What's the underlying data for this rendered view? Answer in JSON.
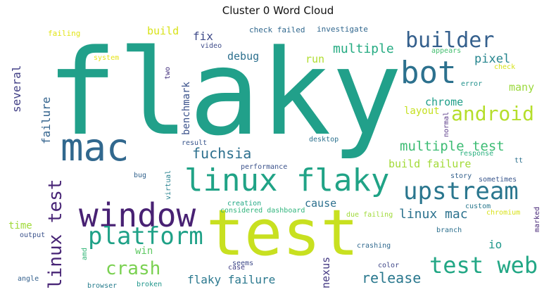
{
  "title": "Cluster 0 Word Cloud",
  "words": [
    {
      "text": "flaky",
      "color": "#21a08a"
    },
    {
      "text": "test",
      "color": "#c8e020"
    },
    {
      "text": "mac",
      "color": "#31688e"
    },
    {
      "text": "window",
      "color": "#482173"
    },
    {
      "text": "linux flaky",
      "color": "#20a386"
    },
    {
      "text": "bot",
      "color": "#2c718e"
    },
    {
      "text": "platform",
      "color": "#1fa187"
    },
    {
      "text": "upstream",
      "color": "#2a768e"
    },
    {
      "text": "test web",
      "color": "#22a785"
    },
    {
      "text": "builder",
      "color": "#35608d"
    },
    {
      "text": "android",
      "color": "#b5de2b"
    },
    {
      "text": "linux test",
      "color": "#482576"
    },
    {
      "text": "crash",
      "color": "#7ad151"
    },
    {
      "text": "multiple test",
      "color": "#3dbc74"
    },
    {
      "text": "fuchsia",
      "color": "#2d708e"
    },
    {
      "text": "release",
      "color": "#2a788e"
    },
    {
      "text": "multiple",
      "color": "#25ab82"
    },
    {
      "text": "linux mac",
      "color": "#2c728e"
    },
    {
      "text": "pixel",
      "color": "#25858e"
    },
    {
      "text": "flaky failure",
      "color": "#2a788e"
    },
    {
      "text": "chrome",
      "color": "#1f9e89"
    },
    {
      "text": "several",
      "color": "#424086"
    },
    {
      "text": "failure",
      "color": "#33638d"
    },
    {
      "text": "cause",
      "color": "#2d708e"
    },
    {
      "text": "many",
      "color": "#9bd93c"
    },
    {
      "text": "benchmark",
      "color": "#3b528b"
    },
    {
      "text": "nexus",
      "color": "#443983"
    },
    {
      "text": "build failure",
      "color": "#a2da37"
    },
    {
      "text": "fix",
      "color": "#3e4a89"
    },
    {
      "text": "build",
      "color": "#d8e219"
    },
    {
      "text": "debug",
      "color": "#2d708e"
    },
    {
      "text": "run",
      "color": "#b0dd2f"
    },
    {
      "text": "layout",
      "color": "#c5e021"
    },
    {
      "text": "win",
      "color": "#5ec962"
    },
    {
      "text": "io",
      "color": "#1f988b"
    },
    {
      "text": "time",
      "color": "#a0da39"
    },
    {
      "text": "check failed",
      "color": "#31688e"
    },
    {
      "text": "investigate",
      "color": "#31678e"
    },
    {
      "text": "failing",
      "color": "#e2e418"
    },
    {
      "text": "system",
      "color": "#e7e419"
    },
    {
      "text": "video",
      "color": "#3e4c8a"
    },
    {
      "text": "appears",
      "color": "#44bf70"
    },
    {
      "text": "check",
      "color": "#d5e21a"
    },
    {
      "text": "error",
      "color": "#21918c"
    },
    {
      "text": "two",
      "color": "#46337f"
    },
    {
      "text": "normal",
      "color": "#5c3c8a"
    },
    {
      "text": "result",
      "color": "#39568c"
    },
    {
      "text": "desktop",
      "color": "#2c718e"
    },
    {
      "text": "response",
      "color": "#2ab07f"
    },
    {
      "text": "tt",
      "color": "#2d708e"
    },
    {
      "text": "performance",
      "color": "#3b528b"
    },
    {
      "text": "story",
      "color": "#34618d"
    },
    {
      "text": "sometimes",
      "color": "#39568c"
    },
    {
      "text": "bug",
      "color": "#33638d"
    },
    {
      "text": "virtual",
      "color": "#26818e"
    },
    {
      "text": "creation",
      "color": "#22a884"
    },
    {
      "text": "considered dashboard",
      "color": "#2fb47c"
    },
    {
      "text": "custom",
      "color": "#2a788e"
    },
    {
      "text": "chromium",
      "color": "#d8e219"
    },
    {
      "text": "due failing",
      "color": "#a0da39"
    },
    {
      "text": "marked",
      "color": "#482878"
    },
    {
      "text": "branch",
      "color": "#2d708e"
    },
    {
      "text": "output",
      "color": "#3b528b"
    },
    {
      "text": "amd",
      "color": "#35b779"
    },
    {
      "text": "crashing",
      "color": "#30698e"
    },
    {
      "text": "seems",
      "color": "#3e4a89"
    },
    {
      "text": "case",
      "color": "#424086"
    },
    {
      "text": "color",
      "color": "#3f4788"
    },
    {
      "text": "angle",
      "color": "#34608d"
    },
    {
      "text": "browser",
      "color": "#287d8e"
    },
    {
      "text": "broken",
      "color": "#1f968b"
    }
  ]
}
